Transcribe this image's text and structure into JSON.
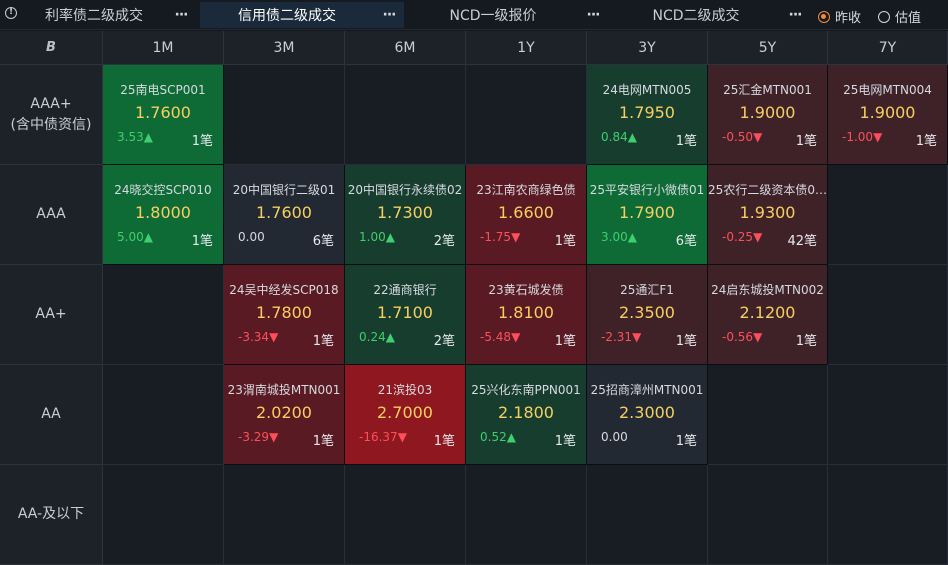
{
  "tabs": [
    {
      "label": "利率债二级成交",
      "active": false
    },
    {
      "label": "信用债二级成交",
      "active": true
    },
    {
      "label": "NCD一级报价",
      "active": false
    },
    {
      "label": "NCD二级成交",
      "active": false
    }
  ],
  "more_glyph": "···",
  "radios": [
    {
      "label": "昨收",
      "checked": true
    },
    {
      "label": "估值",
      "checked": false
    }
  ],
  "corner_logo": "B",
  "tenors": [
    "1M",
    "3M",
    "6M",
    "1Y",
    "3Y",
    "5Y",
    "7Y"
  ],
  "ratings": [
    {
      "line1": "AAA+",
      "line2": "(含中债资信)"
    },
    {
      "line1": "AAA",
      "line2": ""
    },
    {
      "line1": "AA+",
      "line2": ""
    },
    {
      "line1": "AA",
      "line2": ""
    },
    {
      "line1": "AA-及以下",
      "line2": ""
    }
  ],
  "colors": {
    "up_strong": "#0f6b36",
    "up_soft": "#173d2e",
    "down_strong": "#8f1820",
    "down_mid": "#5a1a23",
    "down_soft": "#3f2128",
    "neutral": "#222932",
    "up_text": "#3ecf6e",
    "down_text": "#ff4e5b",
    "price_text": "#f5d061"
  },
  "cells": [
    [
      {
        "name": "25南电SCP001",
        "price": "1.7600",
        "change": "3.53",
        "dir": "up",
        "count": "1笔",
        "tone": "up_strong"
      },
      null,
      null,
      null,
      {
        "name": "24电网MTN005",
        "price": "1.7950",
        "change": "0.84",
        "dir": "up",
        "count": "1笔",
        "tone": "up_soft"
      },
      {
        "name": "25汇金MTN001",
        "price": "1.9000",
        "change": "-0.50",
        "dir": "down",
        "count": "1笔",
        "tone": "down_soft"
      },
      {
        "name": "25电网MTN004",
        "price": "1.9000",
        "change": "-1.00",
        "dir": "down",
        "count": "1笔",
        "tone": "down_soft"
      }
    ],
    [
      {
        "name": "24晓交控SCP010",
        "price": "1.8000",
        "change": "5.00",
        "dir": "up",
        "count": "1笔",
        "tone": "up_strong"
      },
      {
        "name": "20中国银行二级01",
        "price": "1.7600",
        "change": "0.00",
        "dir": "flat",
        "count": "6笔",
        "tone": "neutral"
      },
      {
        "name": "20中国银行永续债02",
        "price": "1.7300",
        "change": "1.00",
        "dir": "up",
        "count": "2笔",
        "tone": "up_soft"
      },
      {
        "name": "23江南农商绿色债",
        "price": "1.6600",
        "change": "-1.75",
        "dir": "down",
        "count": "1笔",
        "tone": "down_mid"
      },
      {
        "name": "25平安银行小微债01",
        "price": "1.7900",
        "change": "3.00",
        "dir": "up",
        "count": "6笔",
        "tone": "up_strong"
      },
      {
        "name": "25农行二级资本债0…",
        "price": "1.9300",
        "change": "-0.25",
        "dir": "down",
        "count": "42笔",
        "tone": "down_soft"
      },
      null
    ],
    [
      null,
      {
        "name": "24吴中经发SCP018",
        "price": "1.7800",
        "change": "-3.34",
        "dir": "down",
        "count": "1笔",
        "tone": "down_mid"
      },
      {
        "name": "22通商银行",
        "price": "1.7100",
        "change": "0.24",
        "dir": "up",
        "count": "2笔",
        "tone": "up_soft"
      },
      {
        "name": "23黄石城发债",
        "price": "1.8100",
        "change": "-5.48",
        "dir": "down",
        "count": "1笔",
        "tone": "down_mid"
      },
      {
        "name": "25通汇F1",
        "price": "2.3500",
        "change": "-2.31",
        "dir": "down",
        "count": "1笔",
        "tone": "down_soft"
      },
      {
        "name": "24启东城投MTN002",
        "price": "2.1200",
        "change": "-0.56",
        "dir": "down",
        "count": "1笔",
        "tone": "down_soft"
      },
      null
    ],
    [
      null,
      {
        "name": "23渭南城投MTN001",
        "price": "2.0200",
        "change": "-3.29",
        "dir": "down",
        "count": "1笔",
        "tone": "down_mid"
      },
      {
        "name": "21滨投03",
        "price": "2.7000",
        "change": "-16.37",
        "dir": "down",
        "count": "1笔",
        "tone": "down_strong"
      },
      {
        "name": "25兴化东南PPN001",
        "price": "2.1800",
        "change": "0.52",
        "dir": "up",
        "count": "1笔",
        "tone": "up_soft"
      },
      {
        "name": "25招商漳州MTN001",
        "price": "2.3000",
        "change": "0.00",
        "dir": "flat",
        "count": "1笔",
        "tone": "neutral"
      },
      null,
      null
    ],
    [
      null,
      null,
      null,
      null,
      null,
      null,
      null
    ]
  ]
}
